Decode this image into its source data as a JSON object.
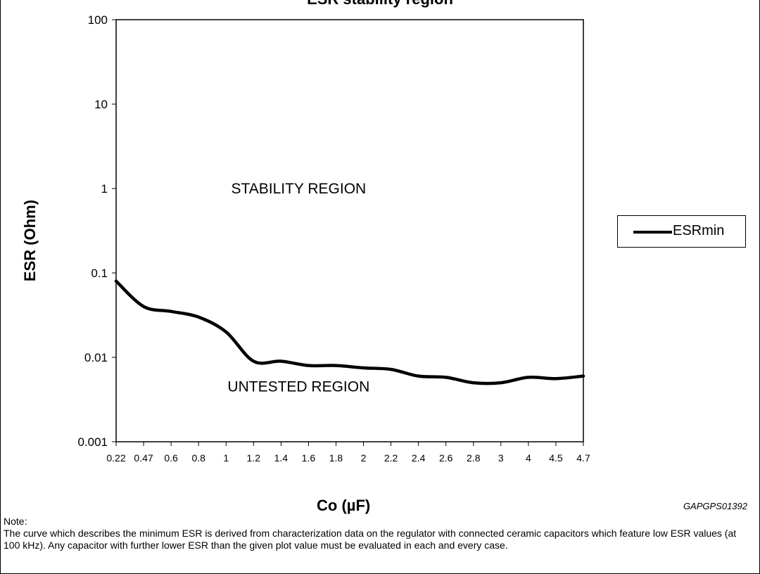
{
  "title": "ESR stability region",
  "chart_data": {
    "type": "line",
    "xlabel": "Co (µF)",
    "ylabel": "ESR (Ohm)",
    "categories": [
      "0.22",
      "0.47",
      "0.6",
      "0.8",
      "1",
      "1.2",
      "1.4",
      "1.6",
      "1.8",
      "2",
      "2.2",
      "2.4",
      "2.6",
      "2.8",
      "3",
      "4",
      "4.5",
      "4.7"
    ],
    "y_scale": "log",
    "ylim": [
      0.001,
      100
    ],
    "y_ticks": [
      "0.001",
      "0.01",
      "0.1",
      "1",
      "10",
      "100"
    ],
    "grid": true,
    "legend_position": "right",
    "series": [
      {
        "name": "ESRmin",
        "color": "#000000",
        "values": [
          0.08,
          0.04,
          0.035,
          0.03,
          0.02,
          0.009,
          0.009,
          0.008,
          0.008,
          0.0075,
          0.0072,
          0.006,
          0.0058,
          0.005,
          0.005,
          0.0058,
          0.0056,
          0.006
        ]
      }
    ],
    "annotations": [
      {
        "text": "STABILITY REGION",
        "x": "1.4",
        "y": 1
      },
      {
        "text": "UNTESTED REGION",
        "x": "1.4",
        "y": 0.0045
      }
    ]
  },
  "figure_code": "GAPGPS01392",
  "note": {
    "label": "Note:",
    "text": "The curve which describes the minimum ESR is derived from characterization data on the regulator with connected ceramic capacitors which feature low ESR values (at 100 kHz). Any capacitor with further lower ESR than the given plot value must be evaluated in each and every case."
  }
}
